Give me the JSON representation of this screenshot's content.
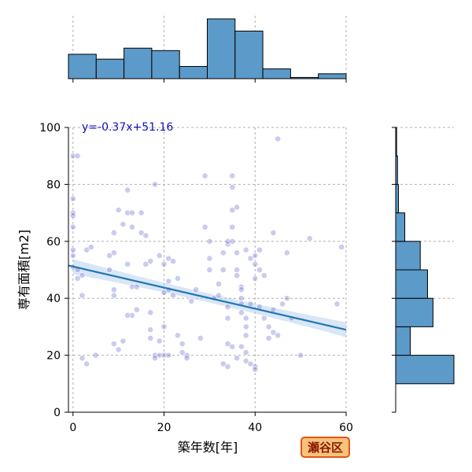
{
  "chart_data": {
    "type": "scatter",
    "xlabel": "築年数[年]",
    "ylabel": "専有面積[m2]",
    "xlim": [
      -1,
      60
    ],
    "ylim": [
      0,
      100
    ],
    "x_ticks": [
      "0",
      "20",
      "40",
      "60"
    ],
    "y_ticks": [
      "0",
      "20",
      "40",
      "60",
      "80",
      "100"
    ],
    "grid": true,
    "regression": {
      "label": "y=-0.37x+51.16",
      "slope": -0.37,
      "intercept": 51.16
    },
    "badge": "瀬谷区",
    "colors": {
      "points": "#6a6ad0",
      "line": "#1f77b4",
      "band": "#a8c8e8",
      "hist": "#5b9ac9"
    },
    "points": [
      [
        0,
        90
      ],
      [
        1,
        90
      ],
      [
        0,
        75
      ],
      [
        0,
        70
      ],
      [
        0,
        69
      ],
      [
        0,
        65
      ],
      [
        0,
        57
      ],
      [
        0,
        55
      ],
      [
        0,
        51
      ],
      [
        1,
        50
      ],
      [
        2,
        48
      ],
      [
        1,
        47
      ],
      [
        2,
        41
      ],
      [
        2,
        19
      ],
      [
        3,
        17
      ],
      [
        5,
        20
      ],
      [
        3,
        57
      ],
      [
        4,
        58
      ],
      [
        8,
        50
      ],
      [
        8,
        55
      ],
      [
        9,
        56
      ],
      [
        9,
        43
      ],
      [
        9,
        41
      ],
      [
        9,
        63
      ],
      [
        10,
        71
      ],
      [
        11,
        66
      ],
      [
        12,
        52
      ],
      [
        12,
        78
      ],
      [
        12,
        70
      ],
      [
        13,
        70
      ],
      [
        13,
        65
      ],
      [
        13,
        34
      ],
      [
        14,
        36
      ],
      [
        15,
        70
      ],
      [
        15,
        63
      ],
      [
        16,
        62
      ],
      [
        16,
        52
      ],
      [
        17,
        53
      ],
      [
        17,
        35
      ],
      [
        17,
        29
      ],
      [
        17,
        26
      ],
      [
        9,
        24
      ],
      [
        10,
        22
      ],
      [
        11,
        25
      ],
      [
        12,
        34
      ],
      [
        13,
        44
      ],
      [
        14,
        44
      ],
      [
        18,
        20
      ],
      [
        18,
        19
      ],
      [
        19,
        20
      ],
      [
        20,
        20
      ],
      [
        21,
        20
      ],
      [
        19,
        25
      ],
      [
        20,
        30
      ],
      [
        19,
        55
      ],
      [
        20,
        52
      ],
      [
        21,
        54
      ],
      [
        22,
        53
      ],
      [
        23,
        47
      ],
      [
        21,
        46
      ],
      [
        21,
        43
      ],
      [
        20,
        42
      ],
      [
        22,
        41
      ],
      [
        18,
        80
      ],
      [
        23,
        27
      ],
      [
        24,
        24
      ],
      [
        24,
        21
      ],
      [
        25,
        20
      ],
      [
        25,
        19
      ],
      [
        26,
        39
      ],
      [
        27,
        43
      ],
      [
        28,
        26
      ],
      [
        29,
        83
      ],
      [
        29,
        65
      ],
      [
        30,
        60
      ],
      [
        30,
        54
      ],
      [
        30,
        50
      ],
      [
        31,
        40
      ],
      [
        32,
        41
      ],
      [
        32,
        45
      ],
      [
        33,
        50
      ],
      [
        33,
        56
      ],
      [
        34,
        59
      ],
      [
        34,
        60
      ],
      [
        34,
        37
      ],
      [
        34,
        33
      ],
      [
        35,
        83
      ],
      [
        35,
        79
      ],
      [
        35,
        71
      ],
      [
        36,
        72
      ],
      [
        35,
        65
      ],
      [
        35,
        60
      ],
      [
        36,
        56
      ],
      [
        36,
        50
      ],
      [
        36,
        48
      ],
      [
        37,
        44
      ],
      [
        37,
        43
      ],
      [
        37,
        40
      ],
      [
        37,
        38
      ],
      [
        37,
        35
      ],
      [
        38,
        33
      ],
      [
        38,
        30
      ],
      [
        38,
        27
      ],
      [
        37,
        23
      ],
      [
        38,
        21
      ],
      [
        38,
        18
      ],
      [
        39,
        17
      ],
      [
        40,
        16
      ],
      [
        40,
        15
      ],
      [
        33,
        17
      ],
      [
        34,
        16
      ],
      [
        35,
        23
      ],
      [
        36,
        19
      ],
      [
        34,
        24
      ],
      [
        38,
        57
      ],
      [
        39,
        54
      ],
      [
        40,
        55
      ],
      [
        40,
        52
      ],
      [
        41,
        50
      ],
      [
        40,
        47
      ],
      [
        42,
        48
      ],
      [
        39,
        38
      ],
      [
        41,
        37
      ],
      [
        42,
        33
      ],
      [
        43,
        30
      ],
      [
        43,
        26
      ],
      [
        45,
        96
      ],
      [
        44,
        28
      ],
      [
        45,
        27
      ],
      [
        44,
        36
      ],
      [
        46,
        38
      ],
      [
        47,
        40
      ],
      [
        48,
        33
      ],
      [
        41,
        57
      ],
      [
        44,
        63
      ],
      [
        47,
        56
      ],
      [
        50,
        20
      ],
      [
        52,
        61
      ],
      [
        59,
        58
      ],
      [
        58,
        38
      ]
    ],
    "x_histogram": {
      "bin_edges": [
        -1,
        5.1,
        11.2,
        17.3,
        23.4,
        29.5,
        35.6,
        41.7,
        47.8,
        53.9,
        60
      ],
      "heights": [
        40,
        32,
        50,
        46,
        20,
        98,
        78,
        16,
        2,
        8
      ]
    },
    "y_histogram": {
      "bin_edges": [
        0,
        10,
        20,
        30,
        40,
        50,
        60,
        70,
        80,
        90,
        100
      ],
      "heights": [
        0,
        64,
        16,
        41,
        35,
        27,
        10,
        3,
        2,
        1
      ]
    }
  }
}
